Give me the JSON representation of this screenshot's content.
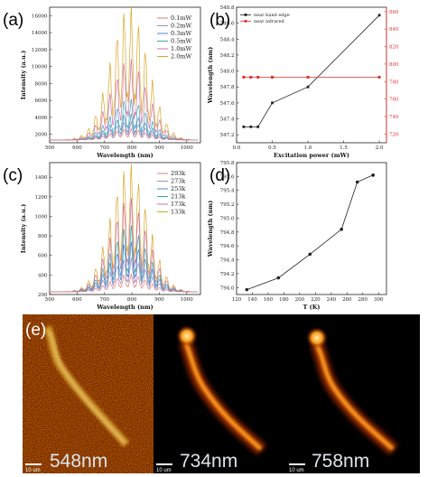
{
  "panels": {
    "a": "(a)",
    "b": "(b)",
    "c": "(c)",
    "d": "(d)",
    "e": "(e)"
  },
  "chart_data": [
    {
      "id": "a",
      "type": "line",
      "xlabel": "Wavelength (nm)",
      "ylabel": "Intensity (a.u.)",
      "xlim": [
        500,
        1050
      ],
      "ylim": [
        1000,
        17000
      ],
      "xticks": [
        500,
        600,
        700,
        800,
        900,
        1000
      ],
      "yticks": [
        2000,
        4000,
        6000,
        8000,
        10000,
        12000,
        14000,
        16000
      ],
      "legend_position": "top-right",
      "series": [
        {
          "name": "0.1mW",
          "color": "#e07a7a",
          "peak": 2600
        },
        {
          "name": "0.2mW",
          "color": "#9a8fc6",
          "peak": 3400
        },
        {
          "name": "0.3mW",
          "color": "#4f88c6",
          "peak": 4300
        },
        {
          "name": "0.5mW",
          "color": "#3aa8a8",
          "peak": 6000
        },
        {
          "name": "1.0mW",
          "color": "#cf6fae",
          "peak": 10500
        },
        {
          "name": "2.0mW",
          "color": "#d9a62a",
          "peak": 16500
        }
      ]
    },
    {
      "id": "b",
      "type": "line",
      "xlabel": "Excitation power (mW)",
      "ylabel": "Wavelength (nm)",
      "xlim": [
        0,
        2.1
      ],
      "ylim": [
        547.1,
        548.8
      ],
      "xticks": [
        0.0,
        0.5,
        1.0,
        1.5,
        2.0
      ],
      "yticks": [
        547.2,
        547.4,
        547.6,
        547.8,
        548.0,
        548.2,
        548.4,
        548.6,
        548.8
      ],
      "y2lim": [
        710,
        865
      ],
      "y2ticks": [
        720,
        740,
        760,
        780,
        800,
        820,
        840,
        860
      ],
      "legend_position": "top-left",
      "series": [
        {
          "name": "near band edge",
          "color": "#222222",
          "axis": "left",
          "x": [
            0.1,
            0.2,
            0.3,
            0.5,
            1.0,
            2.0
          ],
          "y": [
            547.3,
            547.3,
            547.3,
            547.6,
            547.8,
            548.7
          ]
        },
        {
          "name": "near infrared",
          "color": "#e03030",
          "axis": "right",
          "x": [
            0.1,
            0.2,
            0.3,
            0.5,
            1.0,
            2.0
          ],
          "y": [
            785,
            785,
            785,
            785,
            785,
            785
          ]
        }
      ]
    },
    {
      "id": "c",
      "type": "line",
      "xlabel": "Wavelength (nm)",
      "ylabel": "Intensity (a.u.)",
      "xlim": [
        500,
        1050
      ],
      "ylim": [
        200,
        1550
      ],
      "xticks": [
        500,
        600,
        700,
        800,
        900,
        1000
      ],
      "yticks": [
        200,
        400,
        600,
        800,
        1000,
        1200,
        1400
      ],
      "legend_position": "top-right",
      "series": [
        {
          "name": "293k",
          "color": "#e07a7a",
          "peak": 400
        },
        {
          "name": "273k",
          "color": "#9a8fc6",
          "peak": 560
        },
        {
          "name": "253k",
          "color": "#4f88c6",
          "peak": 720
        },
        {
          "name": "213k",
          "color": "#3aa8a8",
          "peak": 880
        },
        {
          "name": "173k",
          "color": "#cf6fae",
          "peak": 1150
        },
        {
          "name": "133k",
          "color": "#d9a62a",
          "peak": 1480
        }
      ]
    },
    {
      "id": "d",
      "type": "line",
      "xlabel": "T (K)",
      "ylabel": "Wavelength (nm)",
      "xlim": [
        120,
        310
      ],
      "ylim": [
        793.9,
        795.8
      ],
      "xticks": [
        120,
        140,
        160,
        180,
        200,
        220,
        240,
        260,
        280,
        300
      ],
      "yticks": [
        794.0,
        794.2,
        794.4,
        794.6,
        794.8,
        795.0,
        795.2,
        795.4,
        795.6,
        795.8
      ],
      "series": [
        {
          "name": "",
          "color": "#222222",
          "x": [
            133,
            173,
            213,
            253,
            273,
            293
          ],
          "y": [
            793.97,
            794.14,
            794.48,
            794.84,
            795.52,
            795.62
          ]
        }
      ]
    }
  ],
  "images": [
    {
      "label": "548nm",
      "scalebar": "10 um",
      "colormap": "gold"
    },
    {
      "label": "734nm",
      "scalebar": "10 um",
      "colormap": "hot"
    },
    {
      "label": "758nm",
      "scalebar": "10 um",
      "colormap": "hot"
    }
  ]
}
